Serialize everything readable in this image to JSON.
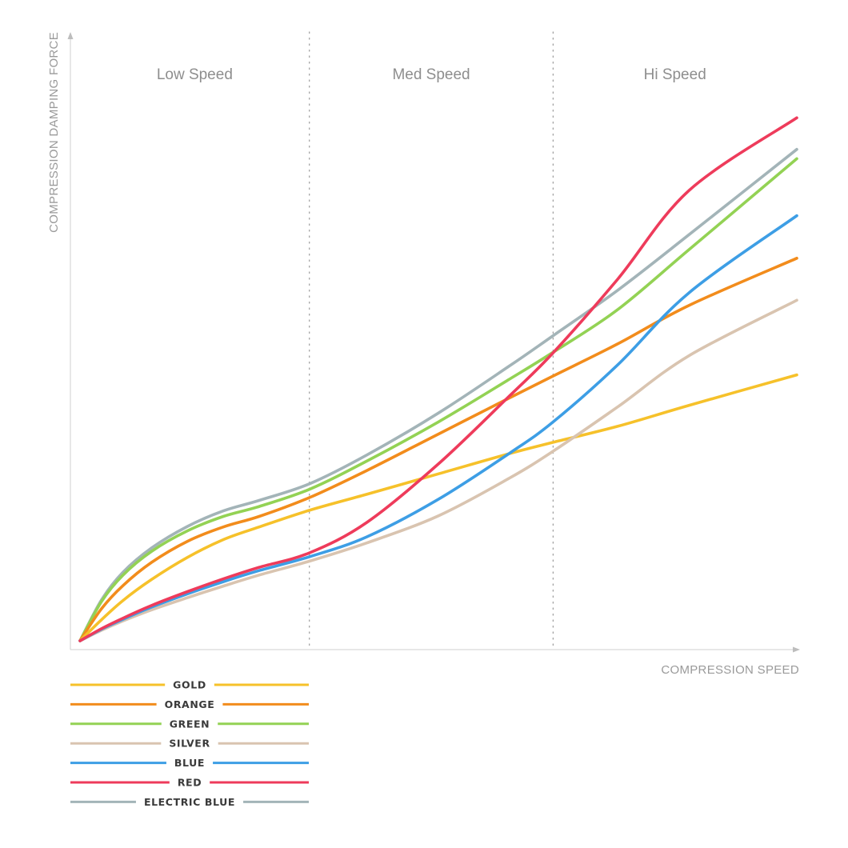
{
  "chart_data": {
    "type": "line",
    "xlabel": "COMPRESSION SPEED",
    "ylabel": "COMPRESSION DAMPING FORCE",
    "xlim": [
      0,
      100
    ],
    "ylim": [
      0,
      100
    ],
    "grid": false,
    "legend_position": "bottom-left",
    "zones": [
      {
        "label": "Low Speed",
        "start": 0,
        "end": 32
      },
      {
        "label": "Med Speed",
        "start": 32,
        "end": 66
      },
      {
        "label": "Hi Speed",
        "start": 66,
        "end": 100
      }
    ],
    "x": [
      0,
      3,
      6,
      10,
      15,
      20,
      25,
      32,
      40,
      50,
      60,
      66,
      75,
      85,
      100
    ],
    "series": [
      {
        "name": "GOLD",
        "color": "#F6C12A",
        "values": [
          0,
          3.8,
          7.3,
          11.1,
          15.1,
          18.3,
          20.6,
          23.6,
          26.5,
          30.2,
          33.9,
          35.9,
          38.8,
          42.6,
          48.1
        ]
      },
      {
        "name": "ORANGE",
        "color": "#F28C1C",
        "values": [
          0,
          5.8,
          10.0,
          14.2,
          18.0,
          20.6,
          22.5,
          25.9,
          30.8,
          37.4,
          44.0,
          47.9,
          53.7,
          60.7,
          69.2
        ]
      },
      {
        "name": "GREEN",
        "color": "#93D254",
        "values": [
          0,
          7.1,
          11.9,
          16.2,
          19.9,
          22.5,
          24.3,
          27.4,
          32.5,
          39.6,
          47.4,
          52.2,
          59.9,
          70.8,
          87.2
        ]
      },
      {
        "name": "SILVER",
        "color": "#D9C4B0",
        "values": [
          0,
          1.9,
          3.6,
          5.6,
          7.8,
          9.9,
          11.9,
          14.4,
          17.7,
          22.6,
          29.5,
          34.3,
          42.3,
          51.6,
          61.6
        ]
      },
      {
        "name": "BLUE",
        "color": "#3D9EE5",
        "values": [
          0,
          2.1,
          3.9,
          6.1,
          8.5,
          10.7,
          12.7,
          15.2,
          18.8,
          25.6,
          34.0,
          39.6,
          49.9,
          63.0,
          76.9
        ]
      },
      {
        "name": "RED",
        "color": "#EE3B5B",
        "values": [
          0,
          2.2,
          4.1,
          6.4,
          8.9,
          11.2,
          13.3,
          15.9,
          21.4,
          32.0,
          44.4,
          52.1,
          65.4,
          81.5,
          94.6
        ]
      },
      {
        "name": "ELECTRIC BLUE",
        "color": "#A3B4B8",
        "values": [
          0,
          7.4,
          12.4,
          16.8,
          20.7,
          23.5,
          25.4,
          28.4,
          33.6,
          41.2,
          49.8,
          55.2,
          63.4,
          73.5,
          88.9
        ]
      }
    ]
  }
}
